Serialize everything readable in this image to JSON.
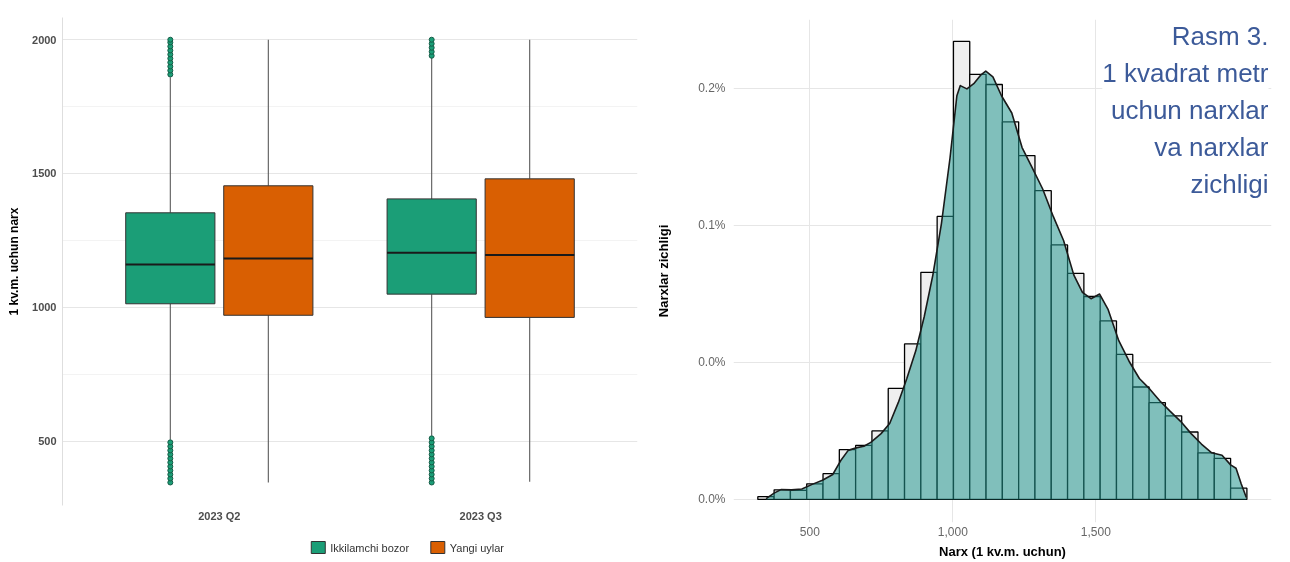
{
  "chart_data": [
    {
      "type": "box",
      "ylabel": "1 kv.m. uchun narx",
      "categories": [
        "2023 Q2",
        "2023 Q3"
      ],
      "ylim": [
        259,
        2083
      ],
      "yticks": [
        500,
        {
          "value": 750,
          "label": null
        },
        1000,
        {
          "value": 1250,
          "label": null
        },
        1500,
        {
          "value": 1750,
          "label": null
        },
        2000
      ],
      "grid": "y",
      "legend": "bottom",
      "series": [
        {
          "name": "Ikkilamchi bozor",
          "color": "#1b9e77",
          "boxes": [
            {
              "low": 505,
              "q1": 1013,
              "median": 1160,
              "q3": 1353,
              "high": 1860,
              "outliers": [
                345,
                360,
                375,
                390,
                405,
                420,
                435,
                450,
                465,
                480,
                495,
                1870,
                1885,
                1900,
                1915,
                1930,
                1945,
                1960,
                1975,
                1990,
                2000
              ]
            },
            {
              "low": 520,
              "q1": 1049,
              "median": 1204,
              "q3": 1405,
              "high": 1935,
              "outliers": [
                345,
                360,
                375,
                390,
                405,
                420,
                435,
                450,
                465,
                480,
                495,
                510,
                1940,
                1955,
                1970,
                1985,
                2000
              ]
            }
          ]
        },
        {
          "name": "Yangi uylar",
          "color": "#d95f02",
          "boxes": [
            {
              "low": 345,
              "q1": 970,
              "median": 1182,
              "q3": 1454,
              "high": 2000
            },
            {
              "low": 348,
              "q1": 962,
              "median": 1195,
              "q3": 1480,
              "high": 2000
            }
          ]
        }
      ]
    },
    {
      "type": "histogram",
      "title": "Rasm 3.\n1 kvadrat metr\nuchun narxlar\nva narxlar\nzichligi",
      "xlabel": "Narx (1 kv.m. uchun)",
      "ylabel": "Narxlar zichligi",
      "xlim": [
        233,
        2114
      ],
      "ylim": [
        -0.0084,
        0.175
      ],
      "xticks": [
        500,
        {
          "value": 1000,
          "label": "1,000"
        },
        {
          "value": 1500,
          "label": "1,500"
        }
      ],
      "yticks": [
        {
          "value": 0,
          "label": "0.0%"
        },
        {
          "value": 0.05,
          "label": "0.0%"
        },
        {
          "value": 0.1,
          "label": "0.1%"
        },
        {
          "value": 0.15,
          "label": "0.2%"
        }
      ],
      "grid": true,
      "series": [
        {
          "type": "histogram",
          "color": "#efefef",
          "bins": [
            318,
            375,
            432,
            489,
            546,
            603,
            660,
            717,
            774,
            831,
            888,
            945,
            1002,
            1059,
            1116,
            1173,
            1230,
            1287,
            1344,
            1401,
            1458,
            1515,
            1572,
            1629,
            1686,
            1743,
            1800,
            1857,
            1914,
            1971,
            2028
          ],
          "values": [
            0.001,
            0.0035,
            0.0033,
            0.0057,
            0.0094,
            0.0182,
            0.0197,
            0.025,
            0.0405,
            0.0567,
            0.0828,
            0.1032,
            0.167,
            0.155,
            0.1513,
            0.1377,
            0.1254,
            0.1126,
            0.0928,
            0.0824,
            0.074,
            0.0651,
            0.0529,
            0.041,
            0.0353,
            0.0305,
            0.0246,
            0.017,
            0.015,
            0.0041
          ]
        },
        {
          "type": "area",
          "color": "#259890",
          "x": [
            347,
            375,
            399,
            436,
            472,
            508,
            544,
            580,
            610,
            634,
            665,
            689,
            713,
            749,
            779,
            809,
            839,
            870,
            900,
            930,
            960,
            990,
            1014,
            1026,
            1049,
            1073,
            1097,
            1115,
            1140,
            1170,
            1206,
            1242,
            1278,
            1314,
            1351,
            1387,
            1423,
            1453,
            1483,
            1513,
            1543,
            1580,
            1616,
            1652,
            1688,
            1724,
            1760,
            1797,
            1833,
            1869,
            1905,
            1941,
            1971,
            1990,
            2008,
            2026
          ],
          "values": [
            0.0003,
            0.0023,
            0.0036,
            0.0035,
            0.0038,
            0.0055,
            0.007,
            0.0091,
            0.0145,
            0.0179,
            0.0189,
            0.0194,
            0.0208,
            0.024,
            0.0277,
            0.0353,
            0.0441,
            0.0541,
            0.0667,
            0.0818,
            0.1006,
            0.1245,
            0.1472,
            0.1509,
            0.1497,
            0.1516,
            0.1547,
            0.1562,
            0.1541,
            0.1472,
            0.1409,
            0.1283,
            0.1208,
            0.1132,
            0.1032,
            0.0944,
            0.0818,
            0.0755,
            0.0732,
            0.0749,
            0.0692,
            0.0579,
            0.0504,
            0.0441,
            0.0403,
            0.0359,
            0.0321,
            0.0284,
            0.024,
            0.0202,
            0.017,
            0.0161,
            0.0126,
            0.0114,
            0.0057,
            0.0007
          ]
        }
      ]
    }
  ]
}
